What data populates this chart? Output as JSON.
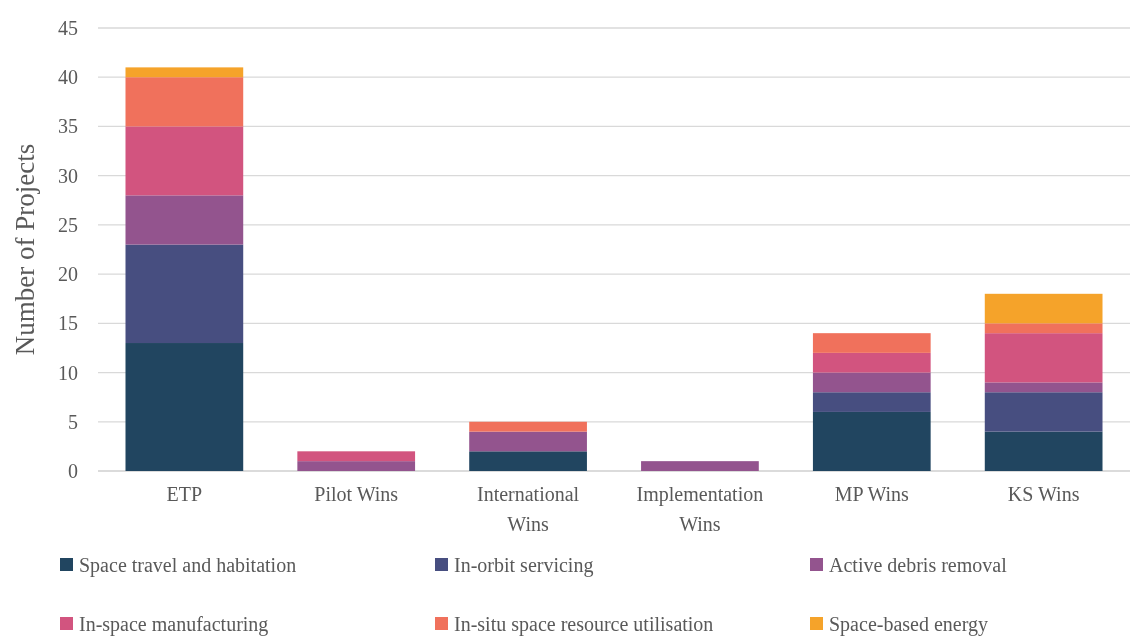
{
  "chart_data": {
    "type": "bar",
    "stacked": true,
    "ylabel": "Number of Projects",
    "categories": [
      "ETP",
      "Pilot Wins",
      "International Wins",
      "Implementation Wins",
      "MP Wins",
      "KS Wins"
    ],
    "series": [
      {
        "name": "Space travel and habitation",
        "color": "#214560",
        "values": [
          13,
          0,
          2,
          0,
          6,
          4
        ]
      },
      {
        "name": "In-orbit servicing",
        "color": "#474e80",
        "values": [
          10,
          0,
          0,
          0,
          2,
          4
        ]
      },
      {
        "name": "Active debris removal",
        "color": "#93548e",
        "values": [
          5,
          1,
          2,
          1,
          2,
          1
        ]
      },
      {
        "name": "In-space manufacturing",
        "color": "#d2547f",
        "values": [
          7,
          1,
          0,
          0,
          2,
          5
        ]
      },
      {
        "name": "In-situ space resource utilisation",
        "color": "#f0715c",
        "values": [
          5,
          0,
          1,
          0,
          2,
          1
        ]
      },
      {
        "name": "Space-based energy",
        "color": "#f5a32a",
        "values": [
          1,
          0,
          0,
          0,
          0,
          3
        ]
      }
    ],
    "ylim": [
      0,
      45
    ],
    "yticks": [
      0,
      5,
      10,
      15,
      20,
      25,
      30,
      35,
      40,
      45
    ],
    "grid": "y",
    "legend": "bottom"
  }
}
